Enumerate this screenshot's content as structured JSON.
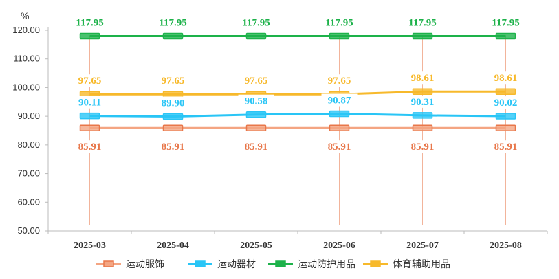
{
  "chart_data": {
    "type": "line",
    "unit_label": "%",
    "categories": [
      "2025-03",
      "2025-04",
      "2025-05",
      "2025-06",
      "2025-07",
      "2025-08"
    ],
    "ylim": [
      50,
      120
    ],
    "yticks": [
      "50.00",
      "60.00",
      "70.00",
      "80.00",
      "90.00",
      "100.00",
      "110.00",
      "120.00"
    ],
    "grid": false,
    "legend_position": "bottom",
    "series": [
      {
        "name": "运动服饰",
        "color": "#F4A582",
        "marker_color": "#E8774A",
        "values": [
          85.91,
          85.91,
          85.91,
          85.91,
          85.91,
          85.91
        ],
        "labels": [
          "85.91",
          "85.91",
          "85.91",
          "85.91",
          "85.91",
          "85.91"
        ],
        "label_color": "#E8774A",
        "label_side": "below"
      },
      {
        "name": "运动器材",
        "color": "#29C5F6",
        "marker_color": "#29C5F6",
        "values": [
          90.11,
          89.9,
          90.58,
          90.87,
          90.31,
          90.02
        ],
        "labels": [
          "90.11",
          "89.90",
          "90.58",
          "90.87",
          "90.31",
          "90.02"
        ],
        "label_color": "#29C5F6",
        "label_side": "above"
      },
      {
        "name": "运动防护用品",
        "color": "#1DB24A",
        "marker_color": "#1DB24A",
        "values": [
          117.95,
          117.95,
          117.95,
          117.95,
          117.95,
          117.95
        ],
        "labels": [
          "117.95",
          "117.95",
          "117.95",
          "117.95",
          "117.95",
          "117.95"
        ],
        "label_color": "#1DB24A",
        "label_side": "above"
      },
      {
        "name": "体育辅助用品",
        "color": "#F7B92B",
        "marker_color": "#F7B92B",
        "values": [
          97.65,
          97.65,
          97.65,
          97.65,
          98.61,
          98.61
        ],
        "labels": [
          "97.65",
          "97.65",
          "97.65",
          "97.65",
          "98.61",
          "98.61"
        ],
        "label_color": "#F7B92B",
        "label_side": "above"
      }
    ]
  }
}
